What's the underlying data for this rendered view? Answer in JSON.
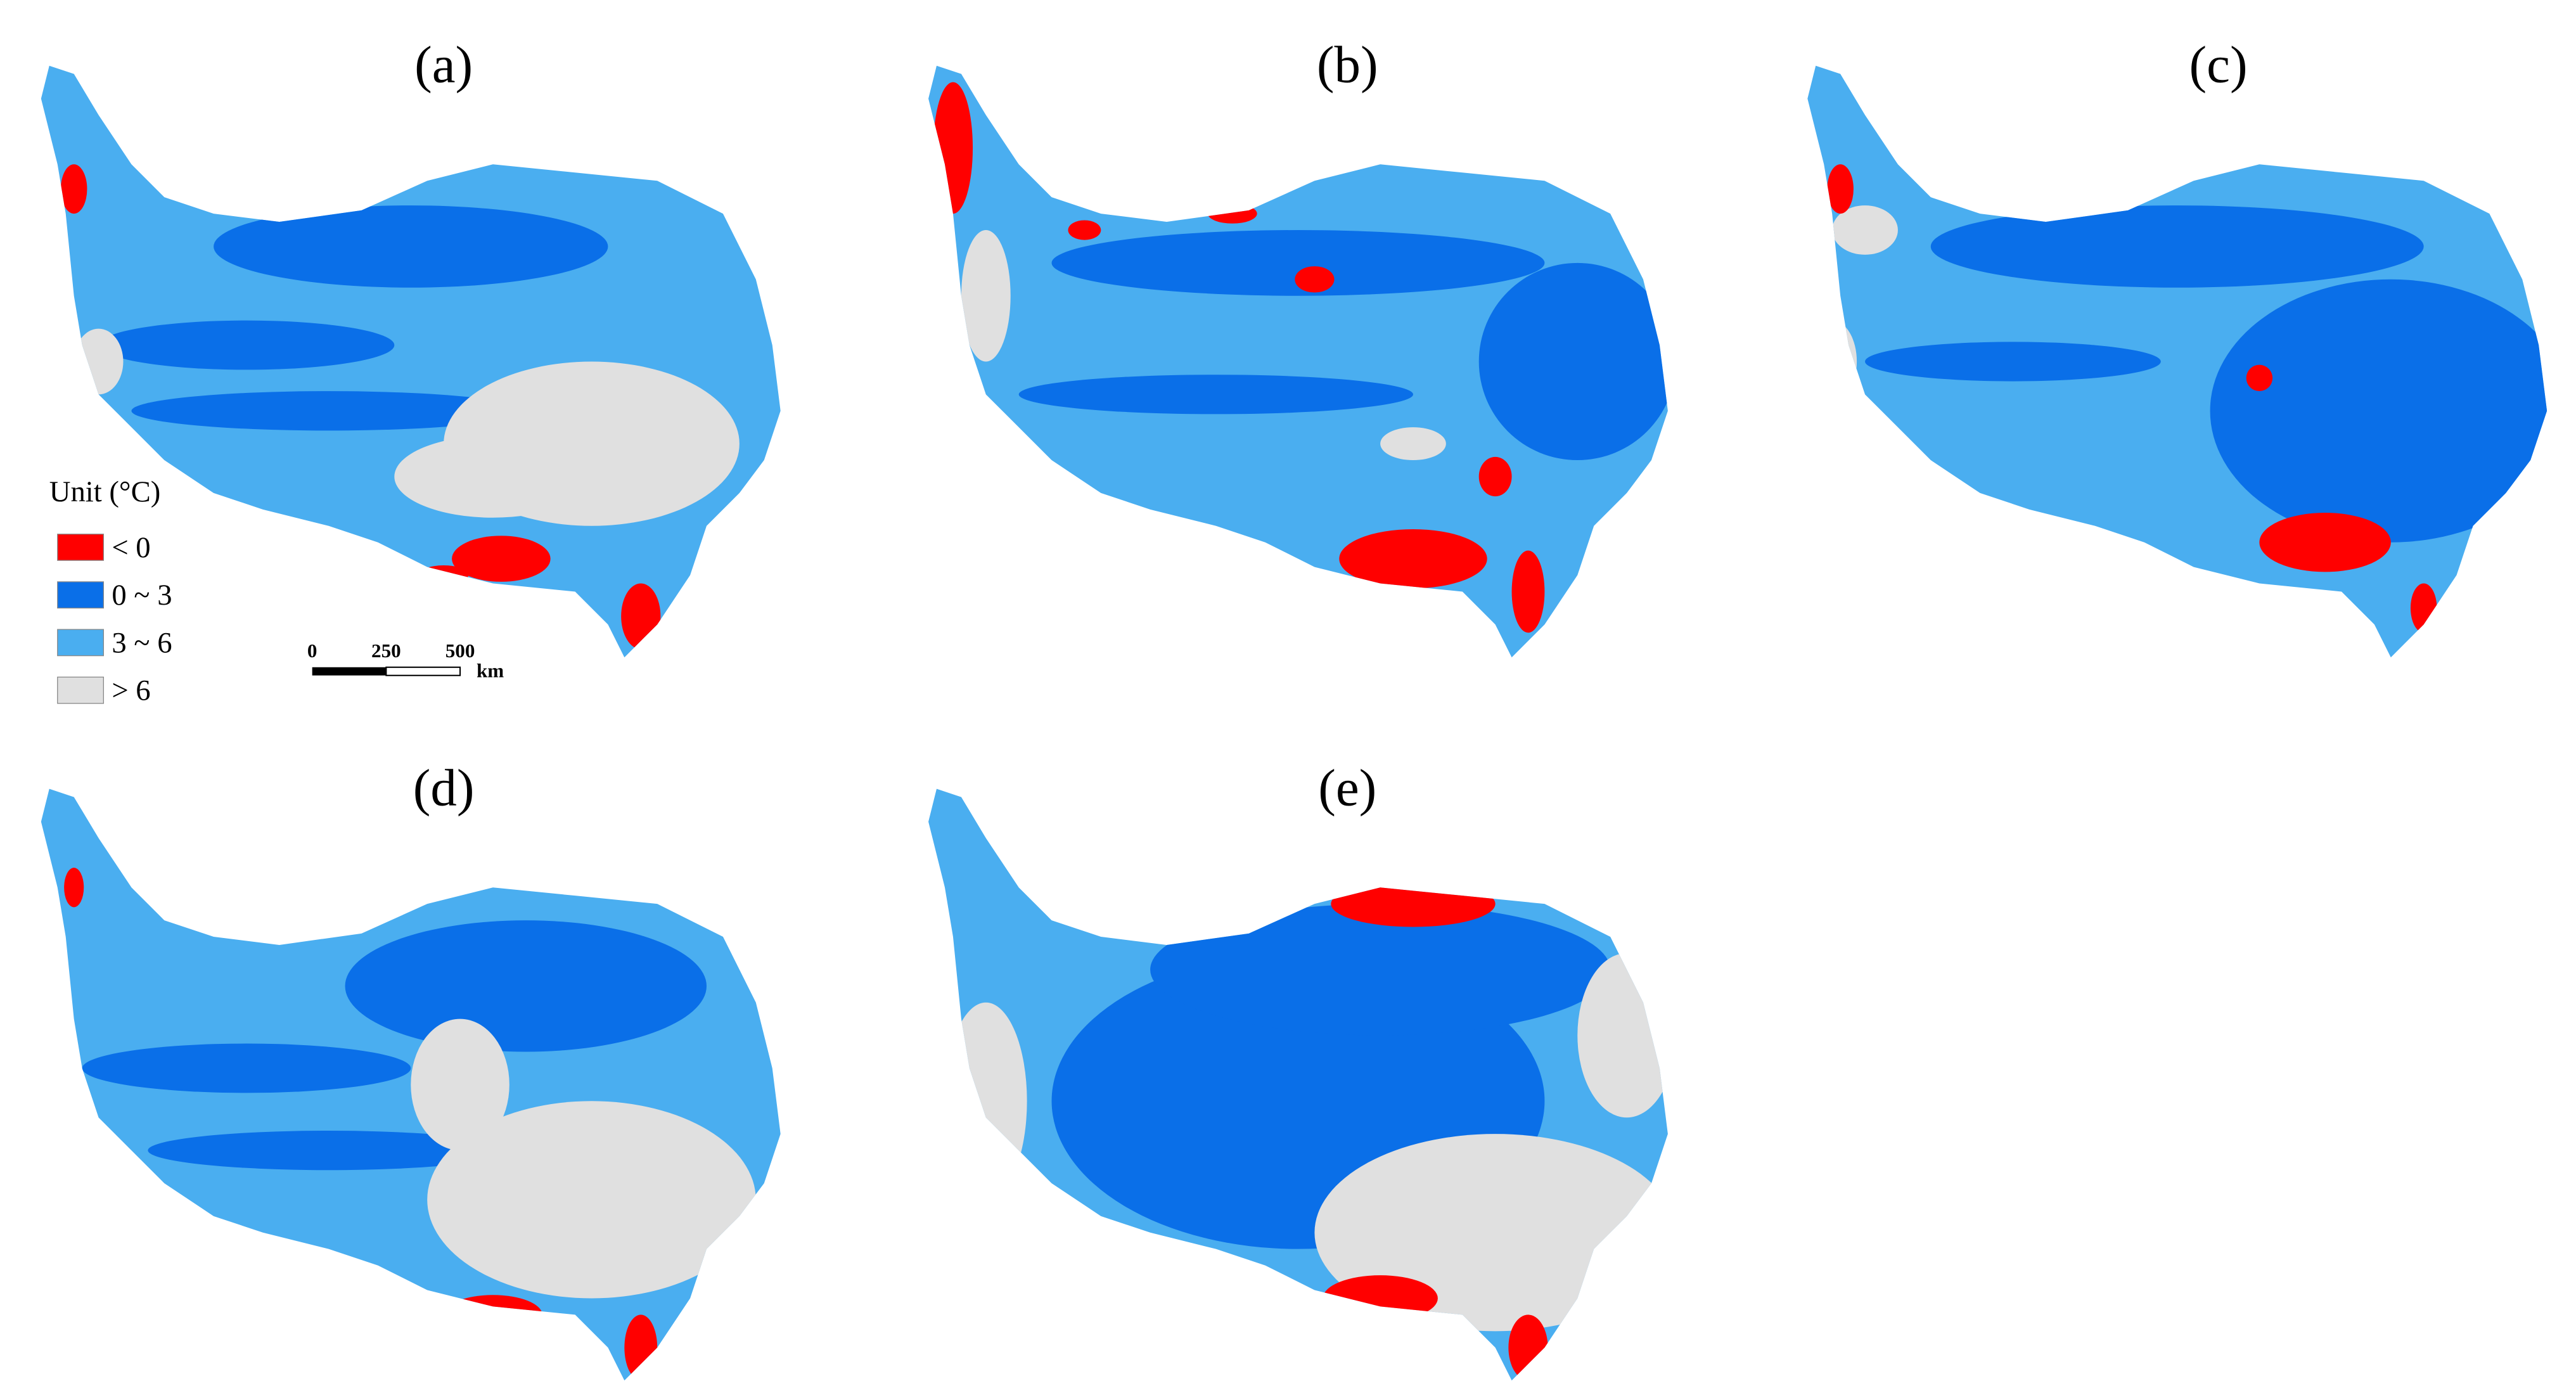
{
  "panels": [
    {
      "label": "(a)"
    },
    {
      "label": "(b)"
    },
    {
      "label": "(c)"
    },
    {
      "label": "(d)"
    },
    {
      "label": "(e)"
    }
  ],
  "legend": {
    "title": "Unit (°C)",
    "items": [
      {
        "label": "< 0",
        "color": "#ff0000"
      },
      {
        "label": "0 ~ 3",
        "color": "#0a6fe8"
      },
      {
        "label": "3 ~ 6",
        "color": "#4aaef0"
      },
      {
        "label": "> 6",
        "color": "#e0e0e0"
      }
    ]
  },
  "scale_bar": {
    "labels": [
      "0",
      "250",
      "500"
    ],
    "unit": "km"
  }
}
